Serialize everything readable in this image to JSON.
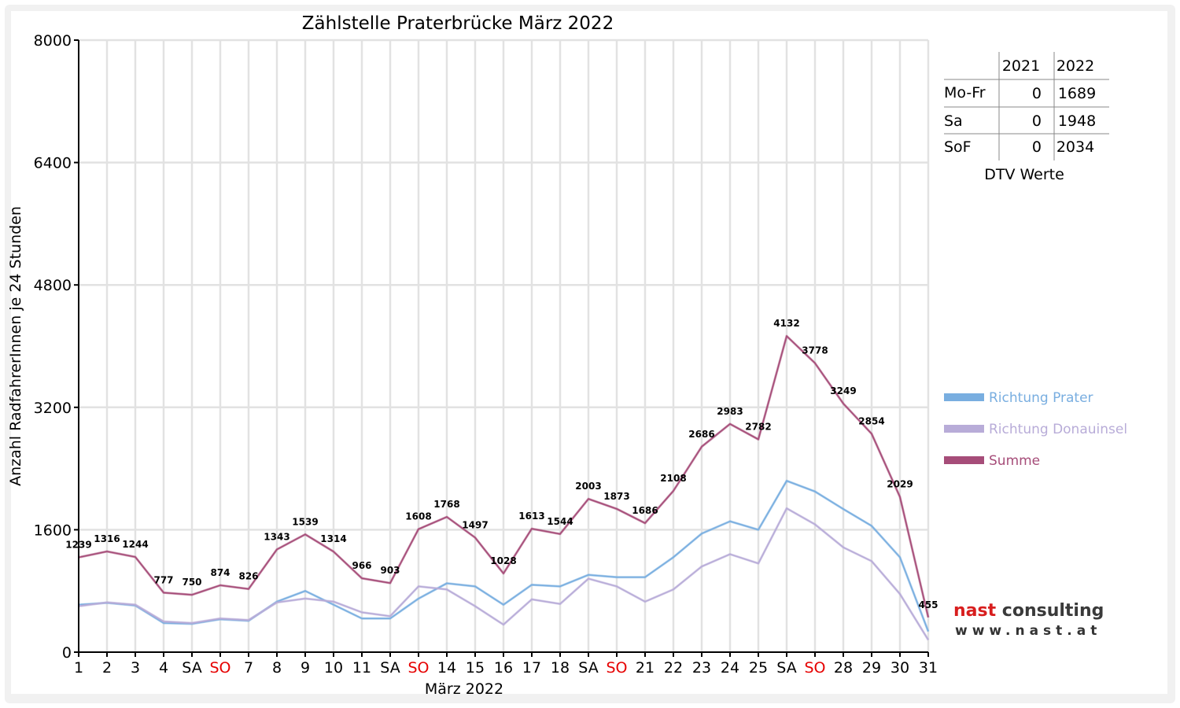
{
  "chart_data": {
    "type": "line",
    "title": "Zählstelle Praterbrücke März 2022",
    "xlabel": "März 2022",
    "ylabel": "Anzahl RadfahrerInnen je 24 Stunden",
    "ylim": [
      0,
      8000
    ],
    "yticks": [
      "0",
      "1600",
      "3200",
      "4800",
      "6400",
      "8000"
    ],
    "categories": [
      "1",
      "2",
      "3",
      "4",
      "SA",
      "SO",
      "7",
      "8",
      "9",
      "10",
      "11",
      "SA",
      "SO",
      "14",
      "15",
      "16",
      "17",
      "18",
      "SA",
      "SO",
      "21",
      "22",
      "23",
      "24",
      "25",
      "SA",
      "SO",
      "28",
      "29",
      "30",
      "31"
    ],
    "weekend_label_color": {
      "SO": "#e60000"
    },
    "grid": true,
    "legend_position": "right",
    "series": [
      {
        "name": "Richtung Prater",
        "color": "#79aee0",
        "values": [
          620,
          645,
          610,
          380,
          370,
          430,
          410,
          660,
          800,
          620,
          440,
          440,
          700,
          900,
          860,
          620,
          880,
          860,
          1010,
          980,
          980,
          1240,
          1550,
          1710,
          1600,
          2240,
          2100,
          1870,
          1650,
          1240,
          270
        ]
      },
      {
        "name": "Richtung Donauinsel",
        "color": "#b8acd8",
        "values": [
          600,
          650,
          620,
          400,
          380,
          440,
          420,
          650,
          700,
          660,
          520,
          470,
          860,
          820,
          600,
          360,
          690,
          630,
          960,
          860,
          660,
          820,
          1120,
          1280,
          1160,
          1880,
          1670,
          1370,
          1190,
          760,
          160
        ]
      },
      {
        "name": "Summe",
        "color": "#a64d79",
        "values": [
          1239,
          1316,
          1244,
          777,
          750,
          874,
          826,
          1343,
          1539,
          1314,
          966,
          903,
          1608,
          1768,
          1497,
          1028,
          1613,
          1544,
          2003,
          1873,
          1686,
          2108,
          2686,
          2983,
          2782,
          4132,
          3778,
          3249,
          2854,
          2029,
          455
        ],
        "labels": [
          "1239",
          "1316",
          "1244",
          "777",
          "750",
          "874",
          "826",
          "1343",
          "1539",
          "1314",
          "966",
          "903",
          "1608",
          "1768",
          "1497",
          "1028",
          "1613",
          "1544",
          "2003",
          "1873",
          "1686",
          "2108",
          "2686",
          "2983",
          "2782",
          "4132",
          "3778",
          "3249",
          "2854",
          "2029",
          "455"
        ]
      }
    ]
  },
  "dtv_table": {
    "col_headers": [
      "2021",
      "2022"
    ],
    "rows": [
      {
        "label": "Mo-Fr",
        "v2021": "0",
        "v2022": "1689"
      },
      {
        "label": "Sa",
        "v2021": "0",
        "v2022": "1948"
      },
      {
        "label": "SoF",
        "v2021": "0",
        "v2022": "2034"
      }
    ],
    "caption": "DTV Werte"
  },
  "logo": {
    "word1": "nast",
    "word2": "consulting",
    "url": "www.nast.at"
  }
}
